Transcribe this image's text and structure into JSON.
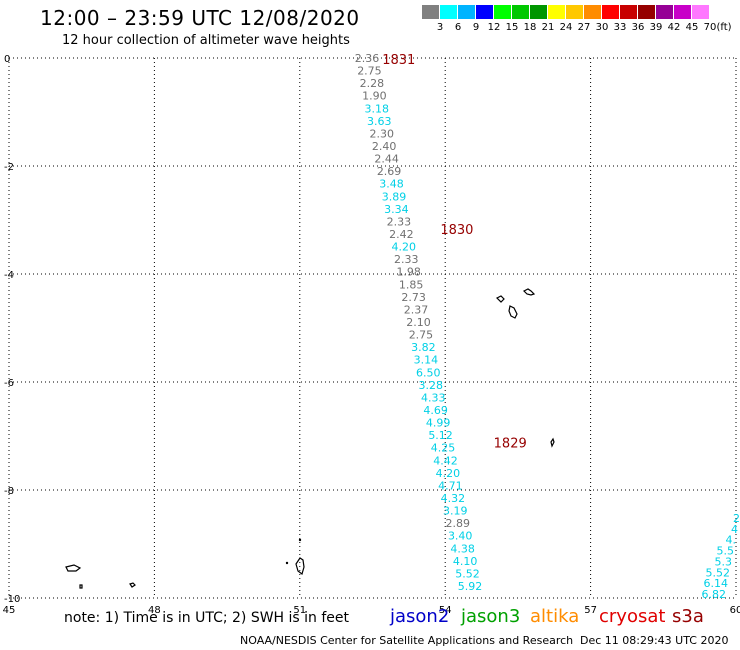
{
  "header": {
    "title": "12:00 – 23:59 UTC 12/08/2020",
    "subtitle": "12 hour collection of altimeter wave heights"
  },
  "scale": {
    "colors": [
      "#808080",
      "#00ffff",
      "#00b4ff",
      "#0000ff",
      "#00ff00",
      "#00c800",
      "#009600",
      "#ffff00",
      "#ffc800",
      "#ff8c00",
      "#ff0000",
      "#c80000",
      "#960000",
      "#960096",
      "#c800c8",
      "#ff78ff"
    ],
    "labels": [
      "3",
      "6",
      "9",
      "12",
      "15",
      "18",
      "21",
      "24",
      "27",
      "30",
      "33",
      "36",
      "39",
      "42",
      "45",
      "70"
    ],
    "unit": "(ft)"
  },
  "axes": {
    "x_ticks": [
      "45",
      "48",
      "51",
      "54",
      "57",
      "60"
    ],
    "y_ticks": [
      "0",
      "-2",
      "-4",
      "-6",
      "-8",
      "-10"
    ]
  },
  "pass_times": [
    {
      "label": "1831",
      "lon": 52.7,
      "lat": 0.0
    },
    {
      "label": "1830",
      "lon": 53.9,
      "lat": -3.15
    },
    {
      "label": "1829",
      "lon": 55.0,
      "lat": -7.1
    }
  ],
  "track": [
    {
      "v": "2.36",
      "c": "g"
    },
    {
      "v": "2.75",
      "c": "g"
    },
    {
      "v": "2.28",
      "c": "g"
    },
    {
      "v": "1.90",
      "c": "g"
    },
    {
      "v": "3.18",
      "c": "c"
    },
    {
      "v": "3.63",
      "c": "c"
    },
    {
      "v": "2.30",
      "c": "g"
    },
    {
      "v": "2.40",
      "c": "g"
    },
    {
      "v": "2.44",
      "c": "g"
    },
    {
      "v": "2.69",
      "c": "g"
    },
    {
      "v": "3.48",
      "c": "c"
    },
    {
      "v": "3.89",
      "c": "c"
    },
    {
      "v": "3.34",
      "c": "c"
    },
    {
      "v": "2.33",
      "c": "g"
    },
    {
      "v": "2.42",
      "c": "g"
    },
    {
      "v": "4.20",
      "c": "c"
    },
    {
      "v": "2.33",
      "c": "g"
    },
    {
      "v": "1.98",
      "c": "g"
    },
    {
      "v": "1.85",
      "c": "g"
    },
    {
      "v": "2.73",
      "c": "g"
    },
    {
      "v": "2.37",
      "c": "g"
    },
    {
      "v": "2.10",
      "c": "g"
    },
    {
      "v": "2.75",
      "c": "g"
    },
    {
      "v": "3.82",
      "c": "c"
    },
    {
      "v": "3.14",
      "c": "c"
    },
    {
      "v": "6.50",
      "c": "c"
    },
    {
      "v": "3.28",
      "c": "c"
    },
    {
      "v": "4.33",
      "c": "c"
    },
    {
      "v": "4.69",
      "c": "c"
    },
    {
      "v": "4.99",
      "c": "c"
    },
    {
      "v": "5.12",
      "c": "c"
    },
    {
      "v": "4.25",
      "c": "c"
    },
    {
      "v": "4.42",
      "c": "c"
    },
    {
      "v": "4.20",
      "c": "c"
    },
    {
      "v": "4.71",
      "c": "c"
    },
    {
      "v": "4.32",
      "c": "c"
    },
    {
      "v": "3.19",
      "c": "c"
    },
    {
      "v": "2.89",
      "c": "g"
    },
    {
      "v": "3.40",
      "c": "c"
    },
    {
      "v": "4.38",
      "c": "c"
    },
    {
      "v": "4.10",
      "c": "c"
    },
    {
      "v": "5.52",
      "c": "c"
    },
    {
      "v": "5.92",
      "c": "c"
    }
  ],
  "edge_track": [
    "2",
    "4",
    "4.",
    "5.5",
    "5.3",
    "5.52",
    "6.14",
    "6.82"
  ],
  "note": "note:  1) Time is in UTC;  2) SWH is in feet",
  "satellites": [
    {
      "name": "jason2",
      "color": "#0000c8"
    },
    {
      "name": "jason3",
      "color": "#00a000"
    },
    {
      "name": "altika",
      "color": "#ff8c00"
    },
    {
      "name": "cryosat",
      "color": "#e00000"
    },
    {
      "name": "s3a",
      "color": "#960000"
    }
  ],
  "footer": {
    "credit": "NOAA/NESDIS Center for Satellite Applications and Research",
    "timestamp": "Dec 11 08:29:43 UTC 2020"
  }
}
